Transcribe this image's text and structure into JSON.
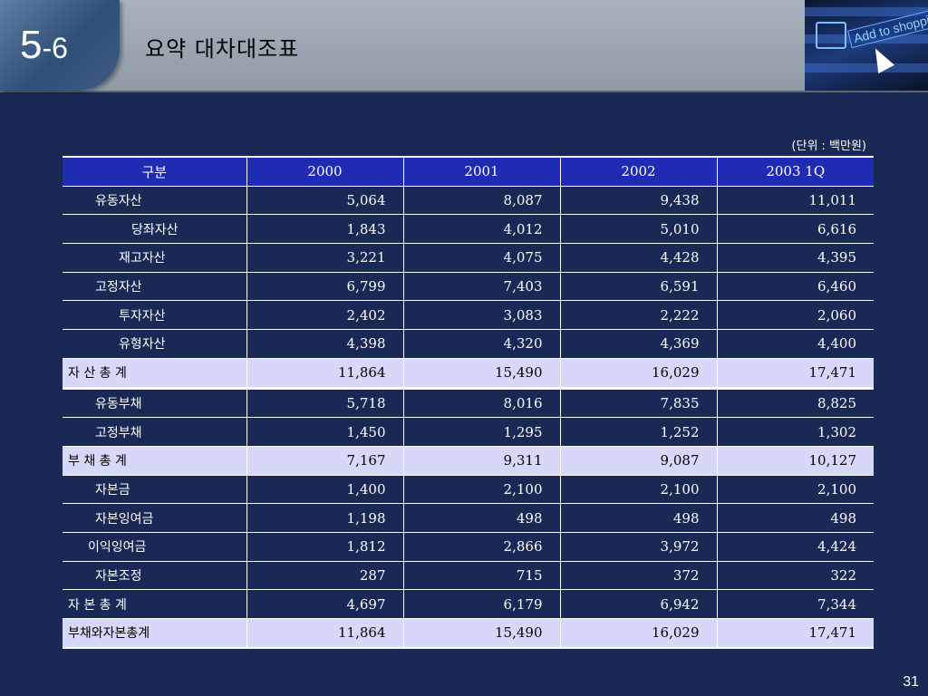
{
  "slide": {
    "number_major": "5",
    "number_minor": "-6",
    "title": "요약 대차대조표",
    "promo_text": "Add to shoppi",
    "unit_note": "(단위 : 백만원)",
    "page_number": "31"
  },
  "table": {
    "headers": [
      "구분",
      "2000",
      "2001",
      "2002",
      "2003 1Q"
    ],
    "rows": [
      {
        "label": "유동자산",
        "indent": 36,
        "values": [
          "5,064",
          "8,087",
          "9,438",
          "11,011"
        ],
        "total": false
      },
      {
        "label": "당좌자산",
        "indent": 76,
        "values": [
          "1,843",
          "4,012",
          "5,010",
          "6,616"
        ],
        "total": false
      },
      {
        "label": "재고자산",
        "indent": 62,
        "values": [
          "3,221",
          "4,075",
          "4,428",
          "4,395"
        ],
        "total": false
      },
      {
        "label": "고정자산",
        "indent": 36,
        "values": [
          "6,799",
          "7,403",
          "6,591",
          "6,460"
        ],
        "total": false
      },
      {
        "label": "투자자산",
        "indent": 62,
        "values": [
          "2,402",
          "3,083",
          "2,222",
          "2,060"
        ],
        "total": false
      },
      {
        "label": "유형자산",
        "indent": 62,
        "values": [
          "4,398",
          "4,320",
          "4,369",
          "4,400"
        ],
        "total": false
      },
      {
        "label": "자 산 총 계",
        "indent": 6,
        "values": [
          "11,864",
          "15,490",
          "16,029",
          "17,471"
        ],
        "total": true
      },
      {
        "label": "유동부채",
        "indent": 36,
        "values": [
          "5,718",
          "8,016",
          "7,835",
          "8,825"
        ],
        "total": false
      },
      {
        "label": "고정부채",
        "indent": 36,
        "values": [
          "1,450",
          "1,295",
          "1,252",
          "1,302"
        ],
        "total": false
      },
      {
        "label": "부 채 총 계",
        "indent": 6,
        "values": [
          "7,167",
          "9,311",
          "9,087",
          "10,127"
        ],
        "total": true
      },
      {
        "label": "자본금",
        "indent": 36,
        "values": [
          "1,400",
          "2,100",
          "2,100",
          "2,100"
        ],
        "total": false
      },
      {
        "label": "자본잉여금",
        "indent": 36,
        "values": [
          "1,198",
          "498",
          "498",
          "498"
        ],
        "total": false
      },
      {
        "label": "이익잉여금",
        "indent": 28,
        "values": [
          "1,812",
          "2,866",
          "3,972",
          "4,424"
        ],
        "total": false
      },
      {
        "label": "자본조정",
        "indent": 36,
        "values": [
          "287",
          "715",
          "372",
          "322"
        ],
        "total": false
      },
      {
        "label": "자 본 총 계",
        "indent": 6,
        "values": [
          "4,697",
          "6,179",
          "6,942",
          "7,344"
        ],
        "total": false
      },
      {
        "label": "부채와자본총계",
        "indent": 6,
        "values": [
          "11,864",
          "15,490",
          "16,029",
          "17,471"
        ],
        "total": true
      }
    ]
  },
  "colors": {
    "background": "#1a2855",
    "header_row": "#1f2bb2",
    "total_row": "#d7d7fa"
  }
}
